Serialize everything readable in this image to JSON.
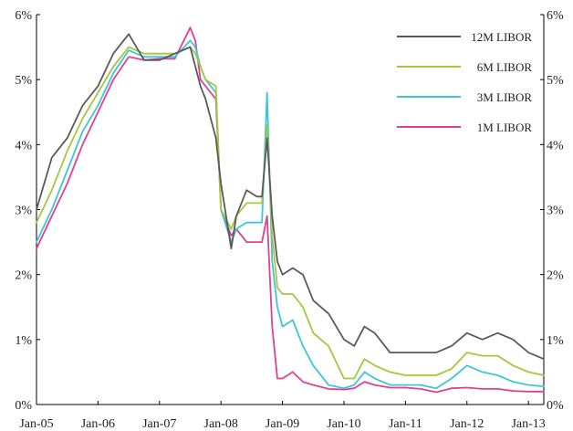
{
  "chart_data": {
    "type": "line",
    "title": "",
    "xlabel": "",
    "ylabel": "",
    "ylim": [
      0,
      6
    ],
    "y_ticks": [
      "0%",
      "1%",
      "2%",
      "3%",
      "4%",
      "5%",
      "6%"
    ],
    "y_tick_values": [
      0,
      1,
      2,
      3,
      4,
      5,
      6
    ],
    "x_ticks": [
      "Jan-05",
      "Jan-06",
      "Jan-07",
      "Jan-08",
      "Jan-09",
      "Jan-10",
      "Jan-11",
      "Jan-12",
      "Jan-13"
    ],
    "x_tick_values": [
      "2005-01",
      "2006-01",
      "2007-01",
      "2008-01",
      "2009-01",
      "2010-01",
      "2011-01",
      "2012-01",
      "2013-01"
    ],
    "x_range": [
      "2005-01",
      "2013-04"
    ],
    "grid": false,
    "legend_position": "top-right",
    "x": [
      "2005-01",
      "2005-04",
      "2005-07",
      "2005-10",
      "2006-01",
      "2006-04",
      "2006-07",
      "2006-10",
      "2007-01",
      "2007-04",
      "2007-07",
      "2007-08",
      "2007-09",
      "2007-10",
      "2007-12",
      "2008-01",
      "2008-03",
      "2008-04",
      "2008-06",
      "2008-08",
      "2008-09",
      "2008-10",
      "2008-11",
      "2008-12",
      "2009-01",
      "2009-03",
      "2009-05",
      "2009-07",
      "2009-10",
      "2010-01",
      "2010-03",
      "2010-05",
      "2010-07",
      "2010-10",
      "2011-01",
      "2011-04",
      "2011-07",
      "2011-10",
      "2012-01",
      "2012-04",
      "2012-07",
      "2012-10",
      "2013-01",
      "2013-04"
    ],
    "series": [
      {
        "name": "12M LIBOR",
        "color": "#5a5a5a",
        "values": [
          3.0,
          3.8,
          4.1,
          4.6,
          4.9,
          5.4,
          5.7,
          5.3,
          5.3,
          5.4,
          5.5,
          5.2,
          4.9,
          4.7,
          4.1,
          3.4,
          2.4,
          2.9,
          3.3,
          3.2,
          3.2,
          4.1,
          2.9,
          2.2,
          2.0,
          2.1,
          2.0,
          1.6,
          1.4,
          1.0,
          0.9,
          1.2,
          1.1,
          0.8,
          0.8,
          0.8,
          0.8,
          0.9,
          1.1,
          1.0,
          1.1,
          1.0,
          0.8,
          0.7
        ]
      },
      {
        "name": "6M LIBOR",
        "color": "#a3c93a",
        "values": [
          2.8,
          3.3,
          3.9,
          4.4,
          4.8,
          5.2,
          5.5,
          5.4,
          5.4,
          5.4,
          5.5,
          5.4,
          5.2,
          5.0,
          4.9,
          3.0,
          2.7,
          2.9,
          3.1,
          3.1,
          3.1,
          4.3,
          2.6,
          1.8,
          1.7,
          1.7,
          1.5,
          1.1,
          0.9,
          0.4,
          0.4,
          0.7,
          0.6,
          0.5,
          0.45,
          0.45,
          0.45,
          0.55,
          0.8,
          0.75,
          0.75,
          0.6,
          0.5,
          0.45
        ]
      },
      {
        "name": "3M LIBOR",
        "color": "#3ec4dd",
        "values": [
          2.5,
          3.0,
          3.6,
          4.2,
          4.6,
          5.1,
          5.45,
          5.35,
          5.35,
          5.35,
          5.6,
          5.5,
          5.2,
          5.0,
          4.8,
          3.0,
          2.5,
          2.7,
          2.8,
          2.8,
          2.8,
          4.8,
          2.2,
          1.5,
          1.2,
          1.3,
          0.9,
          0.6,
          0.3,
          0.25,
          0.3,
          0.5,
          0.4,
          0.3,
          0.3,
          0.3,
          0.25,
          0.4,
          0.6,
          0.5,
          0.45,
          0.35,
          0.3,
          0.28
        ]
      },
      {
        "name": "1M LIBOR",
        "color": "#e0408e",
        "values": [
          2.4,
          2.9,
          3.4,
          4.0,
          4.5,
          5.0,
          5.35,
          5.3,
          5.32,
          5.32,
          5.8,
          5.6,
          5.0,
          4.9,
          4.7,
          3.0,
          2.6,
          2.7,
          2.5,
          2.5,
          2.5,
          2.9,
          1.2,
          0.4,
          0.4,
          0.5,
          0.35,
          0.3,
          0.24,
          0.23,
          0.25,
          0.35,
          0.3,
          0.26,
          0.26,
          0.24,
          0.19,
          0.25,
          0.26,
          0.24,
          0.24,
          0.21,
          0.2,
          0.2
        ]
      }
    ]
  }
}
